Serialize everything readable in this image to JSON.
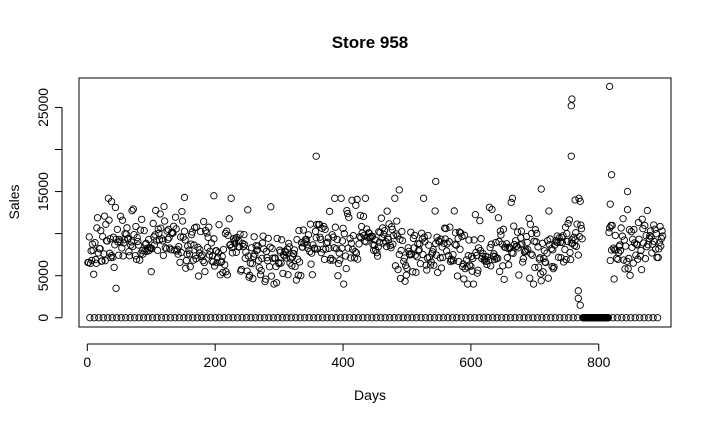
{
  "chart_data": {
    "type": "scatter",
    "title": "Store 958",
    "xlabel": "Days",
    "ylabel": "Sales",
    "xlim": [
      -13,
      913
    ],
    "ylim": [
      -1100,
      28500
    ],
    "xticks": [
      0,
      200,
      400,
      600,
      800
    ],
    "yticks": [
      0,
      5000,
      10000,
      15000,
      20000,
      25000
    ],
    "ytick_labels": [
      "0",
      "5000",
      "",
      "15000",
      "",
      "25000"
    ],
    "grid": false,
    "legend": "none",
    "marker": "open-circle",
    "marker_color": "#000000",
    "description_of_points": "Approximately 900 daily observations; zeros occur periodically (closed days) and in a continuous block around day 775-815.",
    "series": [
      {
        "zero_days": [
          4,
          11,
          18,
          25,
          32,
          39,
          46,
          53,
          60,
          67,
          74,
          81,
          88,
          95,
          102,
          109,
          116,
          123,
          130,
          137,
          144,
          151,
          158,
          165,
          172,
          179,
          186,
          193,
          200,
          207,
          214,
          221,
          228,
          235,
          242,
          249,
          256,
          263,
          270,
          277,
          284,
          291,
          298,
          305,
          312,
          319,
          326,
          333,
          340,
          347,
          354,
          361,
          368,
          375,
          382,
          389,
          396,
          403,
          410,
          417,
          424,
          431,
          438,
          445,
          452,
          459,
          466,
          473,
          480,
          487,
          494,
          501,
          508,
          515,
          522,
          529,
          536,
          543,
          550,
          557,
          564,
          571,
          578,
          585,
          592,
          599,
          606,
          613,
          620,
          627,
          634,
          641,
          648,
          655,
          662,
          669,
          676,
          683,
          690,
          697,
          704,
          711,
          718,
          725,
          732,
          739,
          746,
          753,
          760,
          767,
          775,
          776,
          777,
          778,
          779,
          780,
          781,
          782,
          783,
          784,
          785,
          786,
          787,
          788,
          789,
          790,
          791,
          792,
          793,
          794,
          795,
          796,
          797,
          798,
          799,
          800,
          801,
          802,
          803,
          804,
          805,
          806,
          807,
          808,
          809,
          810,
          811,
          812,
          813,
          814,
          815,
          822,
          829,
          836,
          843,
          850,
          857,
          864,
          871,
          878,
          885,
          892
        ],
        "selected_points": [
          {
            "x": 358,
            "y": 19200
          },
          {
            "x": 545,
            "y": 16200
          },
          {
            "x": 757,
            "y": 19200
          },
          {
            "x": 757,
            "y": 25200
          },
          {
            "x": 758,
            "y": 26000
          },
          {
            "x": 763,
            "y": 14000
          },
          {
            "x": 768,
            "y": 2300
          },
          {
            "x": 768,
            "y": 3200
          },
          {
            "x": 771,
            "y": 1500
          },
          {
            "x": 817,
            "y": 27500
          },
          {
            "x": 820,
            "y": 17000
          },
          {
            "x": 818,
            "y": 13500
          },
          {
            "x": 845,
            "y": 15000
          },
          {
            "x": 38,
            "y": 13800
          },
          {
            "x": 45,
            "y": 3500
          },
          {
            "x": 152,
            "y": 14300
          },
          {
            "x": 198,
            "y": 14500
          },
          {
            "x": 488,
            "y": 15200
          },
          {
            "x": 710,
            "y": 15300
          }
        ]
      }
    ]
  }
}
